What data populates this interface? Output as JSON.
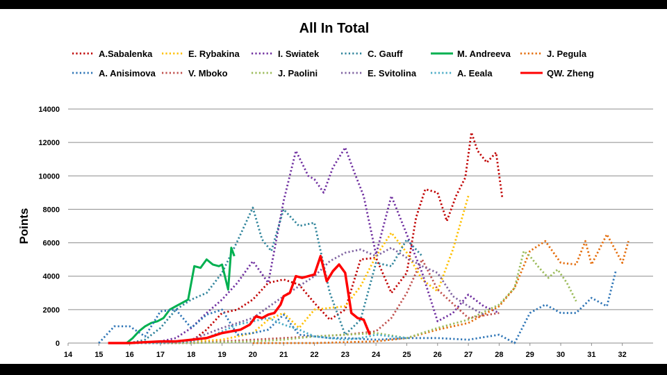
{
  "chart_data": {
    "type": "line",
    "title": "All In Total",
    "xlabel": "",
    "ylabel": "Points",
    "xlim": [
      14,
      33
    ],
    "ylim": [
      0,
      14000
    ],
    "xticks": [
      14,
      15,
      16,
      17,
      18,
      19,
      20,
      21,
      22,
      23,
      24,
      25,
      26,
      27,
      28,
      29,
      30,
      31,
      32
    ],
    "yticks": [
      0,
      2000,
      4000,
      6000,
      8000,
      10000,
      12000,
      14000
    ],
    "grid": "horizontal",
    "legend": "top",
    "series": [
      {
        "name": "A.Sabalenka",
        "color": "#c00000",
        "style": "dotted",
        "x": [
          16.5,
          17.5,
          18.0,
          18.5,
          19.0,
          19.5,
          20.0,
          20.5,
          21.0,
          21.5,
          22.0,
          22.5,
          23.0,
          23.5,
          24.0,
          24.5,
          25.0,
          25.3,
          25.6,
          26.0,
          26.3,
          26.6,
          26.9,
          27.1,
          27.3,
          27.6,
          27.9,
          28.1
        ],
        "y": [
          0,
          0,
          100,
          800,
          1800,
          2000,
          2600,
          3600,
          3800,
          3500,
          2400,
          1400,
          2000,
          5000,
          5100,
          3000,
          4200,
          7500,
          9200,
          9000,
          7300,
          8800,
          9900,
          12600,
          11500,
          10800,
          11400,
          8700
        ]
      },
      {
        "name": "E. Rybakina",
        "color": "#ffc000",
        "style": "dotted",
        "x": [
          16.0,
          17.0,
          18.0,
          19.0,
          20.0,
          20.5,
          21.0,
          21.5,
          22.0,
          22.5,
          23.0,
          23.5,
          24.0,
          24.5,
          25.0,
          25.5,
          26.0,
          26.5,
          27.0
        ],
        "y": [
          0,
          0,
          100,
          200,
          600,
          1400,
          1800,
          900,
          2000,
          2100,
          2200,
          3400,
          5200,
          6600,
          5400,
          3800,
          3100,
          5600,
          8800
        ]
      },
      {
        "name": "I. Swiatek",
        "color": "#7030a0",
        "style": "dotted",
        "x": [
          16.0,
          17.0,
          17.5,
          18.0,
          18.5,
          19.0,
          19.5,
          20.0,
          20.5,
          21.0,
          21.4,
          21.8,
          22.0,
          22.3,
          22.6,
          23.0,
          23.3,
          23.6,
          24.0,
          24.5,
          25.0,
          25.5,
          26.0,
          26.5,
          27.0,
          27.5,
          28.0
        ],
        "y": [
          0,
          100,
          300,
          900,
          1800,
          2600,
          3600,
          4900,
          3600,
          8500,
          11500,
          10000,
          9800,
          9000,
          10500,
          11700,
          10200,
          8800,
          5300,
          8800,
          6500,
          4200,
          1300,
          1800,
          2900,
          2200,
          1800
        ]
      },
      {
        "name": "C. Gauff",
        "color": "#31859c",
        "style": "dotted",
        "x": [
          16.0,
          16.5,
          17.0,
          17.5,
          18.0,
          18.5,
          19.0,
          19.5,
          20.0,
          20.3,
          20.6,
          21.0,
          21.5,
          22.0,
          22.5,
          23.0,
          23.5,
          24.0,
          24.5,
          25.0,
          25.5
        ],
        "y": [
          0,
          200,
          900,
          2000,
          2600,
          3000,
          4200,
          6100,
          8100,
          6200,
          5500,
          8000,
          7000,
          7200,
          3000,
          500,
          1400,
          4800,
          4600,
          6200,
          5200
        ]
      },
      {
        "name": "M. Andreeva",
        "color": "#00b050",
        "style": "solid",
        "x": [
          15.9,
          16.1,
          16.3,
          16.5,
          16.7,
          16.9,
          17.1,
          17.3,
          17.5,
          17.7,
          17.9,
          18.1,
          18.3,
          18.5,
          18.7,
          18.9,
          19.0,
          19.2,
          19.3,
          19.4
        ],
        "y": [
          0,
          300,
          700,
          1000,
          1200,
          1300,
          1500,
          2000,
          2200,
          2400,
          2600,
          4600,
          4500,
          5000,
          4700,
          4600,
          4700,
          3200,
          5700,
          5200
        ]
      },
      {
        "name": "J. Pegula",
        "color": "#e46c0a",
        "style": "dotted",
        "x": [
          20.0,
          22.0,
          24.0,
          25.0,
          26.0,
          27.0,
          28.0,
          28.5,
          29.0,
          29.5,
          30.0,
          30.5,
          30.8,
          31.0,
          31.5,
          32.0,
          32.2
        ],
        "y": [
          0,
          0,
          100,
          300,
          800,
          1200,
          2200,
          3300,
          5500,
          6100,
          4800,
          4700,
          6100,
          4700,
          6500,
          4800,
          6100
        ]
      },
      {
        "name": "A. Anisimova",
        "color": "#2e75b6",
        "style": "dotted",
        "x": [
          15.0,
          15.5,
          16.0,
          16.5,
          17.0,
          17.5,
          18.0,
          18.5,
          19.0,
          19.5,
          20.0,
          20.5,
          21.0,
          21.5,
          22.0,
          22.5,
          23.0,
          24.0,
          25.0,
          26.0,
          27.0,
          28.0,
          28.5,
          29.0,
          29.5,
          30.0,
          30.5,
          31.0,
          31.5,
          31.8
        ],
        "y": [
          0,
          1000,
          1000,
          400,
          1900,
          2000,
          900,
          1700,
          2000,
          500,
          600,
          800,
          1700,
          500,
          400,
          300,
          300,
          200,
          300,
          300,
          200,
          500,
          0,
          1800,
          2300,
          1800,
          1800,
          2700,
          2200,
          4400
        ]
      },
      {
        "name": "V. Mboko",
        "color": "#c0504d",
        "style": "dotted",
        "x": [
          16.0,
          18.0,
          19.0,
          20.0,
          21.0,
          22.0,
          23.0,
          24.0,
          24.5,
          25.0,
          25.5,
          26.0,
          27.0,
          28.0
        ],
        "y": [
          0,
          0,
          100,
          200,
          300,
          400,
          500,
          700,
          1500,
          3000,
          5000,
          3200,
          1500,
          1800
        ]
      },
      {
        "name": "J. Paolini",
        "color": "#9bbb59",
        "style": "dotted",
        "x": [
          16.0,
          18.0,
          20.0,
          21.0,
          22.0,
          23.0,
          24.0,
          25.0,
          26.0,
          27.0,
          28.0,
          28.5,
          28.8,
          29.0,
          29.3,
          29.6,
          29.9,
          30.2,
          30.5
        ],
        "y": [
          0,
          0,
          100,
          200,
          400,
          500,
          600,
          300,
          900,
          1400,
          2300,
          3300,
          5500,
          5200,
          4500,
          3900,
          4400,
          3600,
          2500
        ]
      },
      {
        "name": "E. Svitolina",
        "color": "#8064a2",
        "style": "dotted",
        "x": [
          16.0,
          17.0,
          18.0,
          19.0,
          20.0,
          21.0,
          22.0,
          22.5,
          23.0,
          23.5,
          24.0,
          24.5,
          25.0,
          25.5,
          26.0,
          26.5,
          27.0,
          27.5
        ],
        "y": [
          0,
          0,
          200,
          900,
          1500,
          2800,
          4000,
          4900,
          5400,
          5600,
          5200,
          5700,
          5100,
          4600,
          4200,
          2800,
          2200,
          1700
        ]
      },
      {
        "name": "A. Eeala",
        "color": "#4bacc6",
        "style": "dotted",
        "x": [
          16.0,
          17.0,
          18.0,
          18.5,
          19.0,
          19.5,
          20.0,
          20.5,
          21.0,
          21.5,
          22.0,
          22.5,
          23.0,
          23.5,
          24.0,
          24.5,
          25.0
        ],
        "y": [
          0,
          0,
          100,
          300,
          700,
          1100,
          1300,
          1500,
          1100,
          800,
          400,
          300,
          200,
          300,
          500,
          400,
          300
        ]
      },
      {
        "name": "QW. Zheng",
        "color": "#ff0000",
        "style": "solid",
        "thick": true,
        "x": [
          15.3,
          16.0,
          16.5,
          17.0,
          17.5,
          18.0,
          18.5,
          19.0,
          19.3,
          19.6,
          19.9,
          20.1,
          20.3,
          20.5,
          20.7,
          20.9,
          21.0,
          21.2,
          21.4,
          21.6,
          21.8,
          22.0,
          22.2,
          22.4,
          22.6,
          22.8,
          23.0,
          23.2,
          23.4,
          23.6,
          23.8
        ],
        "y": [
          0,
          0,
          50,
          100,
          100,
          200,
          300,
          600,
          700,
          800,
          1100,
          1600,
          1500,
          1700,
          1800,
          2300,
          2800,
          3000,
          4000,
          3900,
          4000,
          4100,
          5200,
          3700,
          4300,
          4700,
          4200,
          1800,
          1500,
          1400,
          500
        ]
      }
    ]
  }
}
